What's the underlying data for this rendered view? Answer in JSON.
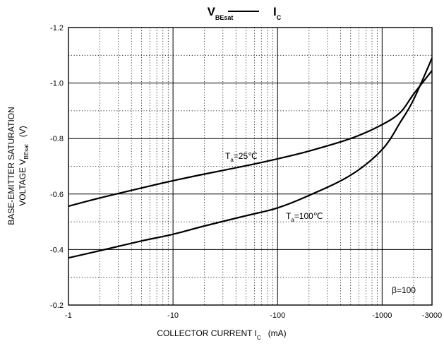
{
  "chart_data": {
    "type": "line",
    "title": {
      "left_main": "V",
      "left_sub": "BEsat",
      "right_main": "I",
      "right_sub": "C"
    },
    "xlabel": {
      "main": "COLLECTOR CURRENT   I",
      "sub": "C",
      "unit": "(mA)"
    },
    "ylabel": {
      "line1": "BASE-EMITTER SATURATION",
      "line2_main": "VOLTAGE   V",
      "line2_sub": "BEsat",
      "line2_unit": "(V)"
    },
    "x_scale": "log",
    "xlim": [
      -1,
      -3000
    ],
    "ylim": [
      -0.2,
      -1.2
    ],
    "x_ticks": [
      {
        "value": -1,
        "label": "-1"
      },
      {
        "value": -10,
        "label": "-10"
      },
      {
        "value": -100,
        "label": "-100"
      },
      {
        "value": -1000,
        "label": "-1000"
      },
      {
        "value": -3000,
        "label": "-3000"
      }
    ],
    "y_ticks": [
      {
        "value": -0.2,
        "label": "-0.2"
      },
      {
        "value": -0.4,
        "label": "-0.4"
      },
      {
        "value": -0.6,
        "label": "-0.6"
      },
      {
        "value": -0.8,
        "label": "-0.8"
      },
      {
        "value": -1.0,
        "label": "-1.0"
      },
      {
        "value": -1.2,
        "label": "-1.2"
      }
    ],
    "grid": true,
    "series": [
      {
        "label_main": "T",
        "label_sub": "a",
        "label_rest": "=25℃",
        "points": [
          [
            -1,
            -0.556
          ],
          [
            -2,
            -0.586
          ],
          [
            -5,
            -0.622
          ],
          [
            -10,
            -0.648
          ],
          [
            -20,
            -0.672
          ],
          [
            -50,
            -0.702
          ],
          [
            -100,
            -0.727
          ],
          [
            -200,
            -0.755
          ],
          [
            -500,
            -0.8
          ],
          [
            -1000,
            -0.85
          ],
          [
            -1500,
            -0.895
          ],
          [
            -2000,
            -0.96
          ],
          [
            -3000,
            -1.045
          ]
        ]
      },
      {
        "label_main": "T",
        "label_sub": "a",
        "label_rest": "=100℃",
        "points": [
          [
            -1,
            -0.37
          ],
          [
            -2,
            -0.396
          ],
          [
            -5,
            -0.431
          ],
          [
            -10,
            -0.455
          ],
          [
            -20,
            -0.485
          ],
          [
            -50,
            -0.522
          ],
          [
            -100,
            -0.55
          ],
          [
            -200,
            -0.595
          ],
          [
            -500,
            -0.668
          ],
          [
            -1000,
            -0.76
          ],
          [
            -1500,
            -0.86
          ],
          [
            -2000,
            -0.94
          ],
          [
            -3000,
            -1.09
          ]
        ]
      }
    ],
    "annotation": "β=100"
  }
}
